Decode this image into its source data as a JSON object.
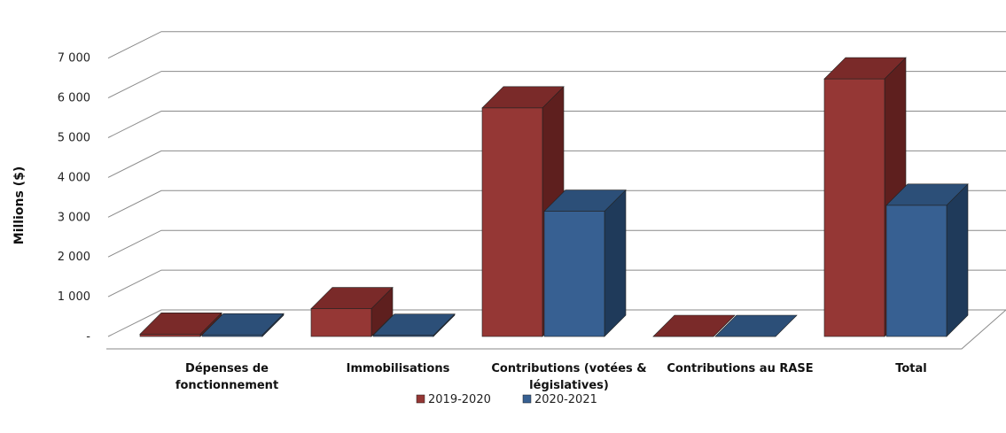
{
  "chart_data": {
    "type": "bar",
    "title": "",
    "xlabel": "",
    "ylabel": "Millions ($)",
    "ylim": [
      0,
      7000
    ],
    "y_ticks": [
      "-",
      "1 000",
      "2 000",
      "3 000",
      "4 000",
      "5 000",
      "6 000",
      "7 000"
    ],
    "y_tick_values": [
      0,
      1000,
      2000,
      3000,
      4000,
      5000,
      6000,
      7000
    ],
    "grid": true,
    "style": "3d-clustered-column",
    "legend_position": "bottom",
    "categories": [
      [
        "Dépenses de",
        "fonctionnement"
      ],
      [
        "Immobilisations"
      ],
      [
        "Contributions (votées &",
        "législatives)"
      ],
      [
        "Contributions au RASE"
      ],
      [
        "Total"
      ]
    ],
    "series": [
      {
        "name": "2019-2020",
        "color": "#953735",
        "top_color": "#7a2a29",
        "side_color": "#5e1f1e",
        "values": [
          60,
          700,
          5750,
          0,
          6480
        ]
      },
      {
        "name": "2020-2021",
        "color": "#376092",
        "top_color": "#2c4f78",
        "side_color": "#1f3a5a",
        "values": [
          40,
          30,
          3150,
          0,
          3300
        ]
      }
    ]
  }
}
